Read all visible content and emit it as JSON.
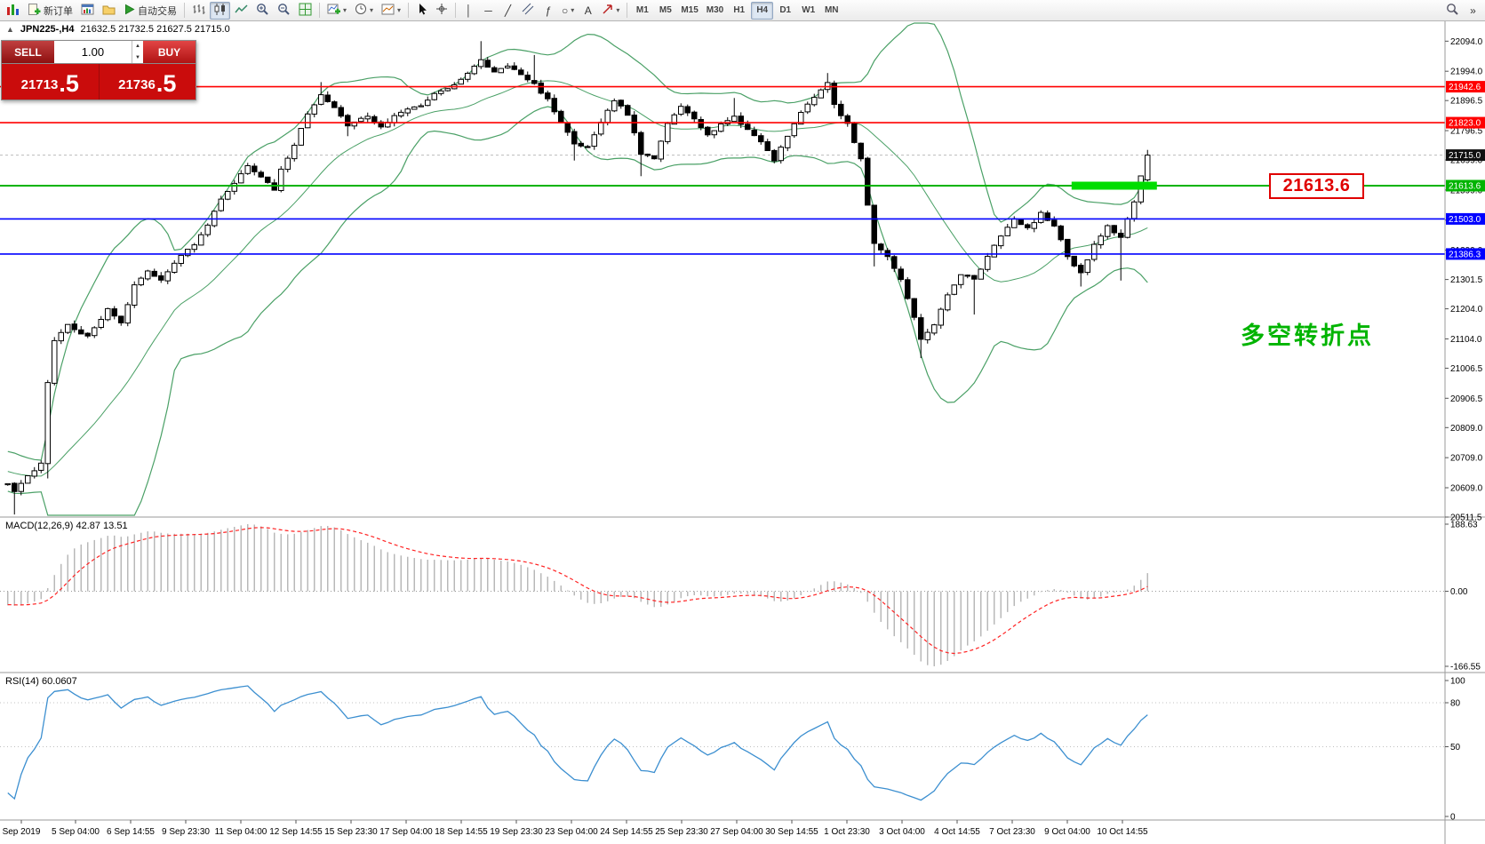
{
  "colors": {
    "bollinger": "#4aa066",
    "candle_up": "#ffffff",
    "candle_down": "#000000",
    "macd_histogram": "#b4b4b4",
    "macd_signal": "#ff2222",
    "rsi": "#3c8fd0",
    "highlight_green": "#00dd00",
    "callout_red": "#e00000",
    "note_green": "#00b400",
    "current_price_box": "#111111"
  },
  "toolbar": {
    "new_order_label": "新订单",
    "autotrading_label": "自动交易",
    "timeframes": [
      "M1",
      "M5",
      "M15",
      "M30",
      "H1",
      "H4",
      "D1",
      "W1",
      "MN"
    ],
    "active_timeframe": "H4",
    "glyphs": {
      "vline": "│",
      "hline": "─",
      "trendline": "╱",
      "fibonacci": "ƒ",
      "shapes": "○",
      "text_tool": "A",
      "overflow": "»",
      "dropdown": "▾",
      "spin_up": "▲",
      "spin_down": "▼"
    }
  },
  "info_line": {
    "collapse_glyph": "▲",
    "symbol": "JPN225-,H4",
    "ohlc": "21632.5 21732.5 21627.5 21715.0"
  },
  "trade_panel": {
    "sell_label": "SELL",
    "buy_label": "BUY",
    "volume": "1.00",
    "sell_price": "21713.5",
    "sell_int": "21713",
    "sell_big": ".5",
    "buy_price": "21736.5",
    "buy_int": "21736",
    "buy_big": ".5"
  },
  "annotations": {
    "price_callout": "21613.6",
    "cn_note": "多空转折点"
  },
  "hlines": [
    {
      "value": 21942.6,
      "label": "21942.6",
      "color": "#ff0000",
      "width": 1.6
    },
    {
      "value": 21823.0,
      "label": "21823.0",
      "color": "#ff0000",
      "width": 1.6
    },
    {
      "value": 21613.6,
      "label": "21613.6",
      "color": "#00b400",
      "width": 2
    },
    {
      "value": 21503.0,
      "label": "21503.0",
      "color": "#0000ff",
      "width": 1.6
    },
    {
      "value": 21386.3,
      "label": "21386.3",
      "color": "#0000ff",
      "width": 1.6
    }
  ],
  "current_price": {
    "value": 21715.0,
    "label": "21715.0"
  },
  "price_axis": {
    "labels": [
      "22094.0",
      "21994.0",
      "21896.5",
      "21796.5",
      "21699.0",
      "21599.0",
      "21499.0",
      "21399.0",
      "21301.5",
      "21204.0",
      "21104.0",
      "21006.5",
      "20906.5",
      "20809.0",
      "20709.0",
      "20609.0",
      "20511.5"
    ]
  },
  "time_axis": {
    "labels": [
      "Sep 2019",
      "5 Sep 04:00",
      "6 Sep 14:55",
      "9 Sep 23:30",
      "11 Sep 04:00",
      "12 Sep 14:55",
      "15 Sep 23:30",
      "17 Sep 04:00",
      "18 Sep 14:55",
      "19 Sep 23:30",
      "23 Sep 04:00",
      "24 Sep 14:55",
      "25 Sep 23:30",
      "27 Sep 04:00",
      "30 Sep 14:55",
      "1 Oct 23:30",
      "3 Oct 04:00",
      "4 Oct 14:55",
      "7 Oct 23:30",
      "9 Oct 04:00",
      "10 Oct 14:55"
    ]
  },
  "indicators": {
    "macd": {
      "label": "MACD(12,26,9) 42.87 13.51",
      "scale_max": "188.63",
      "scale_zero": "0.00",
      "scale_min": "-166.55"
    },
    "rsi": {
      "label": "RSI(14) 60.0607",
      "scale": [
        "100",
        "80",
        "50",
        "0"
      ],
      "levels": [
        80,
        50
      ]
    }
  },
  "chart_data": {
    "type": "candlestick",
    "symbol": "JPN225-",
    "timeframe": "H4",
    "candle_count": 172,
    "noise": 9,
    "visible_price_range": [
      20511.5,
      22094.0
    ],
    "last_candle": [
      21632.5,
      21732.5,
      21627.5,
      21715.0
    ],
    "close_waypoints": [
      [
        0,
        20620
      ],
      [
        1,
        20600
      ],
      [
        3,
        20645
      ],
      [
        5,
        20690
      ],
      [
        6,
        20960
      ],
      [
        7,
        21100
      ],
      [
        9,
        21150
      ],
      [
        12,
        21110
      ],
      [
        15,
        21200
      ],
      [
        17,
        21160
      ],
      [
        19,
        21280
      ],
      [
        21,
        21330
      ],
      [
        23,
        21300
      ],
      [
        25,
        21360
      ],
      [
        28,
        21420
      ],
      [
        30,
        21480
      ],
      [
        32,
        21570
      ],
      [
        34,
        21620
      ],
      [
        36,
        21680
      ],
      [
        38,
        21640
      ],
      [
        40,
        21600
      ],
      [
        41,
        21665
      ],
      [
        43,
        21750
      ],
      [
        45,
        21850
      ],
      [
        47,
        21920
      ],
      [
        49,
        21870
      ],
      [
        51,
        21815
      ],
      [
        54,
        21845
      ],
      [
        56,
        21810
      ],
      [
        59,
        21860
      ],
      [
        62,
        21880
      ],
      [
        64,
        21920
      ],
      [
        67,
        21950
      ],
      [
        69,
        21985
      ],
      [
        71,
        22030
      ],
      [
        73,
        21990
      ],
      [
        75,
        22015
      ],
      [
        77,
        21980
      ],
      [
        79,
        21950
      ],
      [
        81,
        21900
      ],
      [
        83,
        21820
      ],
      [
        85,
        21755
      ],
      [
        87,
        21740
      ],
      [
        89,
        21820
      ],
      [
        91,
        21900
      ],
      [
        93,
        21850
      ],
      [
        95,
        21720
      ],
      [
        97,
        21700
      ],
      [
        99,
        21820
      ],
      [
        101,
        21880
      ],
      [
        103,
        21840
      ],
      [
        105,
        21780
      ],
      [
        107,
        21820
      ],
      [
        109,
        21840
      ],
      [
        111,
        21800
      ],
      [
        113,
        21760
      ],
      [
        115,
        21700
      ],
      [
        117,
        21780
      ],
      [
        119,
        21860
      ],
      [
        121,
        21905
      ],
      [
        123,
        21960
      ],
      [
        124,
        21880
      ],
      [
        126,
        21820
      ],
      [
        128,
        21700
      ],
      [
        129,
        21550
      ],
      [
        130,
        21420
      ],
      [
        132,
        21380
      ],
      [
        134,
        21300
      ],
      [
        136,
        21180
      ],
      [
        137,
        21100
      ],
      [
        139,
        21150
      ],
      [
        141,
        21250
      ],
      [
        143,
        21320
      ],
      [
        145,
        21300
      ],
      [
        147,
        21380
      ],
      [
        149,
        21450
      ],
      [
        151,
        21500
      ],
      [
        153,
        21470
      ],
      [
        155,
        21520
      ],
      [
        157,
        21480
      ],
      [
        159,
        21380
      ],
      [
        161,
        21320
      ],
      [
        163,
        21420
      ],
      [
        165,
        21480
      ],
      [
        167,
        21440
      ],
      [
        169,
        21560
      ],
      [
        170,
        21650
      ],
      [
        171,
        21715
      ]
    ],
    "wick_events": [
      [
        1,
        "low",
        20520
      ],
      [
        6,
        "low",
        20640
      ],
      [
        47,
        "high",
        21958
      ],
      [
        51,
        "low",
        21778
      ],
      [
        71,
        "high",
        22094
      ],
      [
        79,
        "high",
        22048
      ],
      [
        85,
        "low",
        21697
      ],
      [
        95,
        "low",
        21645
      ],
      [
        109,
        "high",
        21905
      ],
      [
        123,
        "high",
        21988
      ],
      [
        130,
        "low",
        21345
      ],
      [
        137,
        "low",
        21040
      ],
      [
        145,
        "low",
        21185
      ],
      [
        161,
        "low",
        21278
      ],
      [
        167,
        "low",
        21298
      ]
    ],
    "bollinger": {
      "period": 20,
      "deviations": 2
    },
    "macd": {
      "fast": 12,
      "slow": 26,
      "signal": 9,
      "current_macd": 42.87,
      "current_signal": 13.51
    },
    "rsi": {
      "period": 14,
      "current": 60.0607
    },
    "highlight": {
      "bar_start": 160,
      "bar_end": 172,
      "price": 21613.6,
      "color": "#00dd00"
    }
  }
}
